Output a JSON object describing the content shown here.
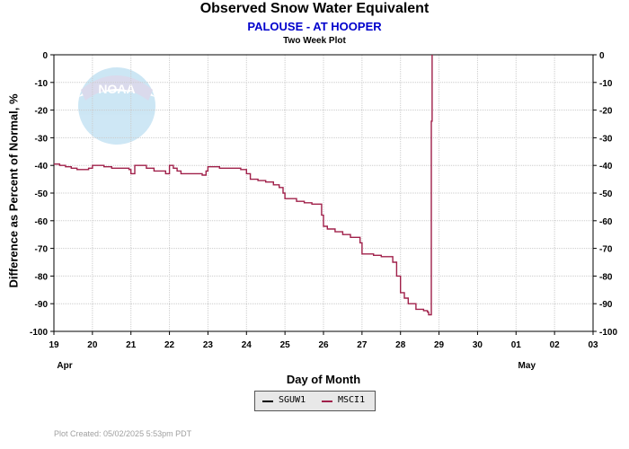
{
  "chart_data": {
    "type": "line",
    "title": "Observed Snow Water Equivalent",
    "subtitle": "PALOUSE - AT HOOPER",
    "subsubtitle": "Two Week Plot",
    "xlabel": "Day of Month",
    "ylabel": "Difference as Percent of Normal, %",
    "xlim": [
      0,
      14
    ],
    "ylim": [
      -100,
      0
    ],
    "y_ticks": [
      0,
      -10,
      -20,
      -30,
      -40,
      -50,
      -60,
      -70,
      -80,
      -90,
      -100
    ],
    "x_ticks": [
      {
        "x": 0,
        "label": "19"
      },
      {
        "x": 1,
        "label": "20"
      },
      {
        "x": 2,
        "label": "21"
      },
      {
        "x": 3,
        "label": "22"
      },
      {
        "x": 4,
        "label": "23"
      },
      {
        "x": 5,
        "label": "24"
      },
      {
        "x": 6,
        "label": "25"
      },
      {
        "x": 7,
        "label": "26"
      },
      {
        "x": 8,
        "label": "27"
      },
      {
        "x": 9,
        "label": "28"
      },
      {
        "x": 10,
        "label": "29"
      },
      {
        "x": 11,
        "label": "30"
      },
      {
        "x": 12,
        "label": "01"
      },
      {
        "x": 13,
        "label": "02"
      },
      {
        "x": 14,
        "label": "03"
      }
    ],
    "month_labels": [
      {
        "x": 0,
        "label": "Apr"
      },
      {
        "x": 12,
        "label": "May"
      }
    ],
    "grid": true,
    "legend_position": "bottom-center",
    "series": [
      {
        "name": "SGUW1",
        "color": "#000000",
        "values": []
      },
      {
        "name": "MSCI1",
        "color": "#a0204a",
        "x": [
          0,
          0.15,
          0.3,
          0.45,
          0.6,
          0.75,
          0.9,
          1.0,
          1.1,
          1.3,
          1.5,
          1.7,
          1.85,
          1.95,
          2.0,
          2.1,
          2.2,
          2.4,
          2.5,
          2.6,
          2.7,
          2.8,
          2.9,
          3.0,
          3.1,
          3.2,
          3.3,
          3.5,
          3.7,
          3.85,
          3.95,
          4.0,
          4.1,
          4.3,
          4.5,
          4.7,
          4.85,
          5.0,
          5.1,
          5.3,
          5.5,
          5.7,
          5.85,
          5.95,
          6.0,
          6.1,
          6.3,
          6.5,
          6.7,
          6.85,
          6.95,
          7.0,
          7.1,
          7.3,
          7.5,
          7.7,
          7.85,
          7.95,
          8.0,
          8.1,
          8.3,
          8.5,
          8.7,
          8.8,
          8.9,
          9.0,
          9.1,
          9.2,
          9.4,
          9.6,
          9.7,
          9.73,
          9.78,
          9.8,
          9.82
        ],
        "y": [
          -39.5,
          -40,
          -40.5,
          -41,
          -41.5,
          -41.5,
          -41,
          -40,
          -40,
          -40.5,
          -41,
          -41,
          -41,
          -41.5,
          -43,
          -40,
          -40,
          -41,
          -41,
          -42,
          -42,
          -42,
          -43,
          -40,
          -41,
          -42,
          -43,
          -43,
          -43,
          -43.5,
          -42,
          -40.5,
          -40.5,
          -41,
          -41,
          -41,
          -41.5,
          -43,
          -45,
          -45.5,
          -46,
          -47,
          -48,
          -50,
          -52,
          -52,
          -53,
          -53.5,
          -54,
          -54,
          -58,
          -62,
          -63,
          -64,
          -65,
          -66,
          -66,
          -68,
          -72,
          -72,
          -72.5,
          -73,
          -73,
          -75,
          -80,
          -86,
          -88,
          -90,
          -92,
          -92.5,
          -93,
          -94,
          -94,
          -24,
          0
        ]
      }
    ]
  },
  "legend": [
    {
      "label": "SGUW1",
      "color": "#000000"
    },
    {
      "label": "MSCI1",
      "color": "#a0204a"
    }
  ],
  "footer": "Plot Created: 05/02/2025 5:53pm PDT",
  "logo": {
    "text": "NOAA"
  }
}
